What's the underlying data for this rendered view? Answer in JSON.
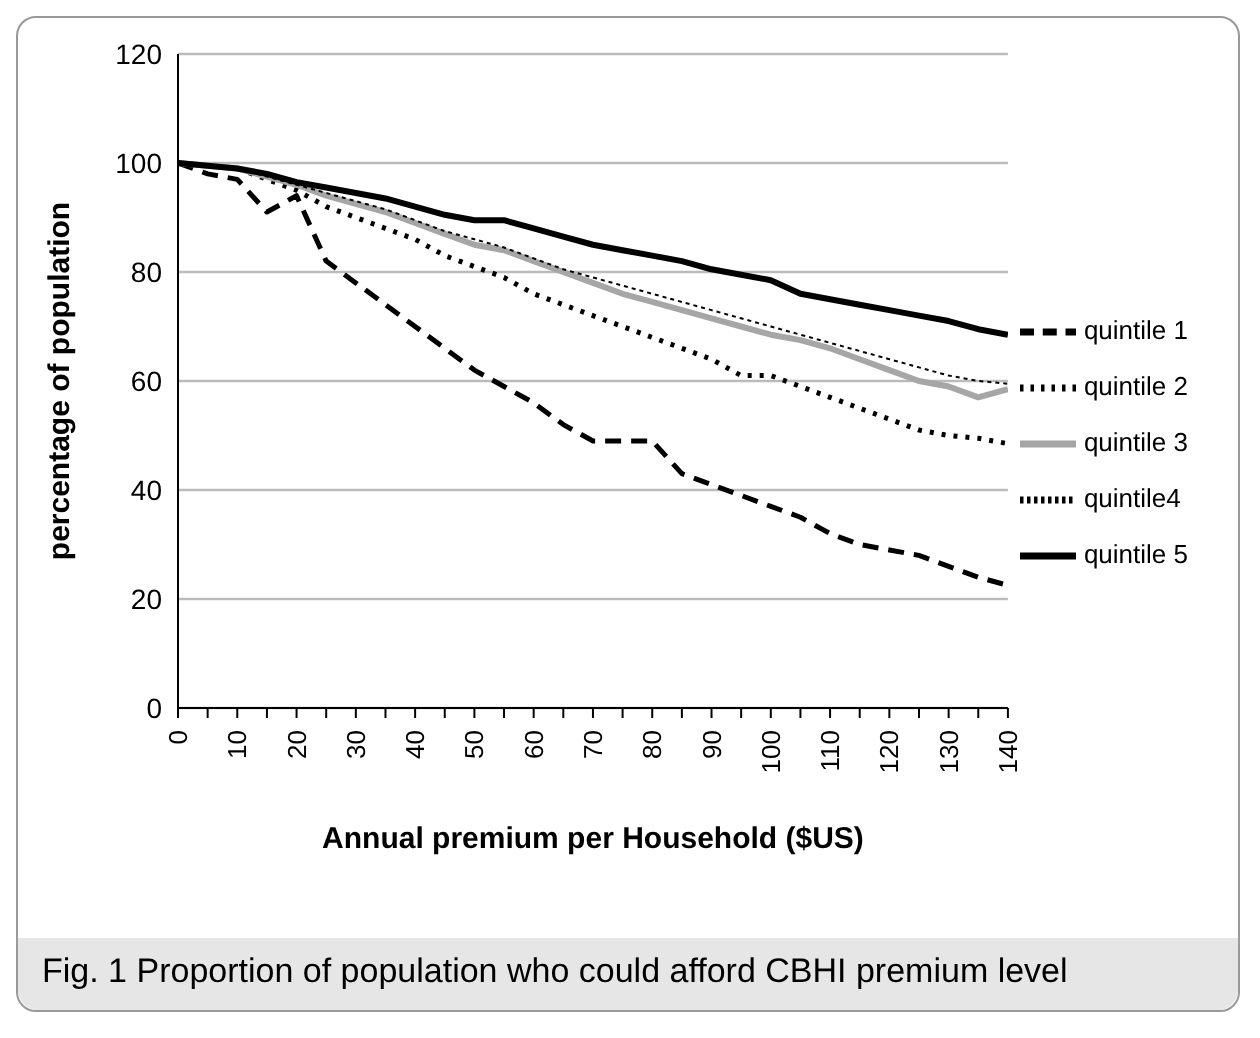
{
  "chart_data": {
    "type": "line",
    "xlabel": "Annual premium per Household ($US)",
    "ylabel": "percentage of population",
    "annotations": [
      "Fig. 1  Proportion of population who could afford CBHI premium level"
    ],
    "x": [
      0,
      5,
      10,
      15,
      20,
      25,
      30,
      35,
      40,
      45,
      50,
      55,
      60,
      65,
      70,
      75,
      80,
      85,
      90,
      95,
      100,
      105,
      110,
      115,
      120,
      125,
      130,
      135,
      140
    ],
    "xlim": [
      0,
      140
    ],
    "xticks": [
      0,
      {
        "value": 5,
        "label": null
      },
      10,
      {
        "value": 15,
        "label": null
      },
      20,
      {
        "value": 25,
        "label": null
      },
      30,
      {
        "value": 35,
        "label": null
      },
      40,
      {
        "value": 45,
        "label": null
      },
      50,
      {
        "value": 55,
        "label": null
      },
      60,
      {
        "value": 65,
        "label": null
      },
      70,
      {
        "value": 75,
        "label": null
      },
      80,
      {
        "value": 85,
        "label": null
      },
      90,
      {
        "value": 95,
        "label": null
      },
      100,
      {
        "value": 105,
        "label": null
      },
      110,
      {
        "value": 115,
        "label": null
      },
      120,
      {
        "value": 125,
        "label": null
      },
      130,
      {
        "value": 135,
        "label": null
      },
      140
    ],
    "ylim": [
      0,
      120
    ],
    "yticks": [
      0,
      20,
      40,
      60,
      80,
      100,
      120
    ],
    "grid": "y",
    "legend": "right",
    "marker": "none",
    "series": [
      {
        "name": "quintile 1",
        "color": "#000000",
        "line_style": "dashed",
        "values": [
          100,
          98,
          97,
          91,
          94,
          82,
          78,
          74,
          70,
          66,
          62,
          59,
          56,
          52,
          49,
          49,
          49,
          43,
          41,
          39,
          37,
          35,
          32,
          30,
          29,
          28,
          26,
          24,
          22.5
        ]
      },
      {
        "name": "quintile 2",
        "color": "#000000",
        "line_style": "dotted",
        "values": [
          100,
          99.5,
          99,
          97,
          95,
          92,
          90,
          88,
          86,
          83,
          81,
          79,
          76,
          74,
          72,
          70,
          68,
          66,
          64,
          61,
          61,
          59,
          57,
          55,
          53,
          51,
          50,
          49.5,
          48.5
        ]
      },
      {
        "name": "quintile 3",
        "color": "#a6a6a6",
        "line_style": "solid",
        "values": [
          100,
          99.5,
          99,
          97.5,
          96,
          94,
          92.5,
          91,
          89,
          87,
          85,
          84,
          82,
          80,
          78,
          76,
          74.5,
          73,
          71.5,
          70,
          68.5,
          67.5,
          66,
          64,
          62,
          60,
          59,
          57,
          58.5
        ]
      },
      {
        "name": "quintile4",
        "color": "#000000",
        "line_style": "dashed",
        "values": [
          100,
          99.5,
          99,
          97.5,
          96,
          94.5,
          93,
          91.5,
          89.5,
          87.5,
          86,
          84.5,
          82.5,
          80.5,
          79,
          77.5,
          76,
          74.5,
          73,
          71.5,
          70,
          68.5,
          67,
          65.5,
          64,
          62.5,
          61,
          60,
          59.5
        ]
      },
      {
        "name": "quintile 5",
        "color": "#000000",
        "line_style": "solid",
        "values": [
          100,
          99.5,
          99,
          98,
          96.5,
          95.5,
          94.5,
          93.5,
          92,
          90.5,
          89.5,
          89.5,
          88,
          86.5,
          85,
          84,
          83,
          82,
          80.5,
          79.5,
          78.5,
          76,
          75,
          74,
          73,
          72,
          71,
          69.5,
          68.5
        ]
      }
    ]
  }
}
